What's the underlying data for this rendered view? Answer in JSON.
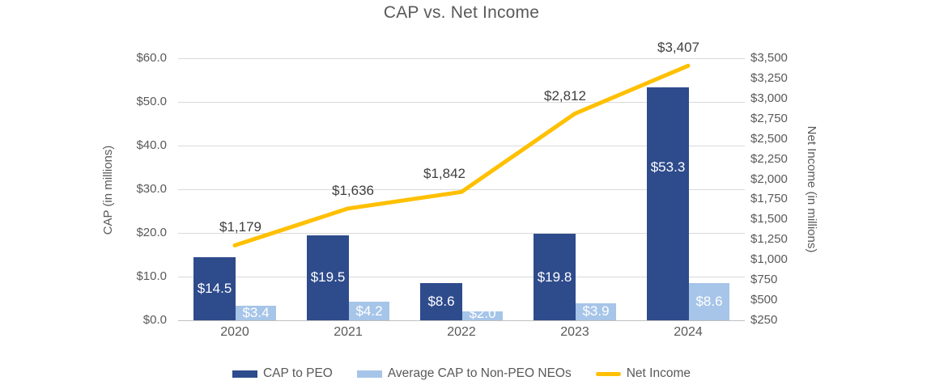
{
  "title": "CAP vs. Net Income",
  "chart_data": {
    "type": "combo-bar-line",
    "categories": [
      "2020",
      "2021",
      "2022",
      "2023",
      "2024"
    ],
    "series": [
      {
        "name": "CAP to PEO",
        "type": "bar",
        "axis": "left",
        "color": "#2E4B8C",
        "values": [
          14.5,
          19.5,
          8.6,
          19.8,
          53.3
        ],
        "labels": [
          "$14.5",
          "$19.5",
          "$8.6",
          "$19.8",
          "$53.3"
        ]
      },
      {
        "name": "Average CAP to Non-PEO NEOs",
        "type": "bar",
        "axis": "left",
        "color": "#A6C5E8",
        "values": [
          3.4,
          4.2,
          2.0,
          3.9,
          8.6
        ],
        "labels": [
          "$3.4",
          "$4.2",
          "$2.0",
          "$3.9",
          "$8.6"
        ]
      },
      {
        "name": "Net Income",
        "type": "line",
        "axis": "right",
        "color": "#FFC000",
        "values": [
          1179,
          1636,
          1842,
          2812,
          3407
        ],
        "labels": [
          "$1,179",
          "$1,636",
          "$1,842",
          "$2,812",
          "$3,407"
        ]
      }
    ],
    "left_axis": {
      "title": "CAP (in millions)",
      "min": 0,
      "max": 60,
      "ticks": [
        "$60.0",
        "$50.0",
        "$40.0",
        "$30.0",
        "$20.0",
        "$10.0",
        "$0.0"
      ]
    },
    "right_axis": {
      "title": "Net Income (in millions)",
      "min": 250,
      "max": 3500,
      "ticks": [
        "$3,500",
        "$3,250",
        "$3,000",
        "$2,750",
        "$2,500",
        "$2,250",
        "$2,000",
        "$1,750",
        "$1,500",
        "$1,250",
        "$1,000",
        "$750",
        "$500",
        "$250"
      ]
    },
    "legend_position": "bottom",
    "grid": "horizontal",
    "colors": {
      "gridline": "#DADADA",
      "axis_line": "#BFBFBF",
      "axis_text": "#595959",
      "title_text": "#595959",
      "bar_label_text": "#FFFFFF",
      "line_label_text": "#404040"
    }
  }
}
